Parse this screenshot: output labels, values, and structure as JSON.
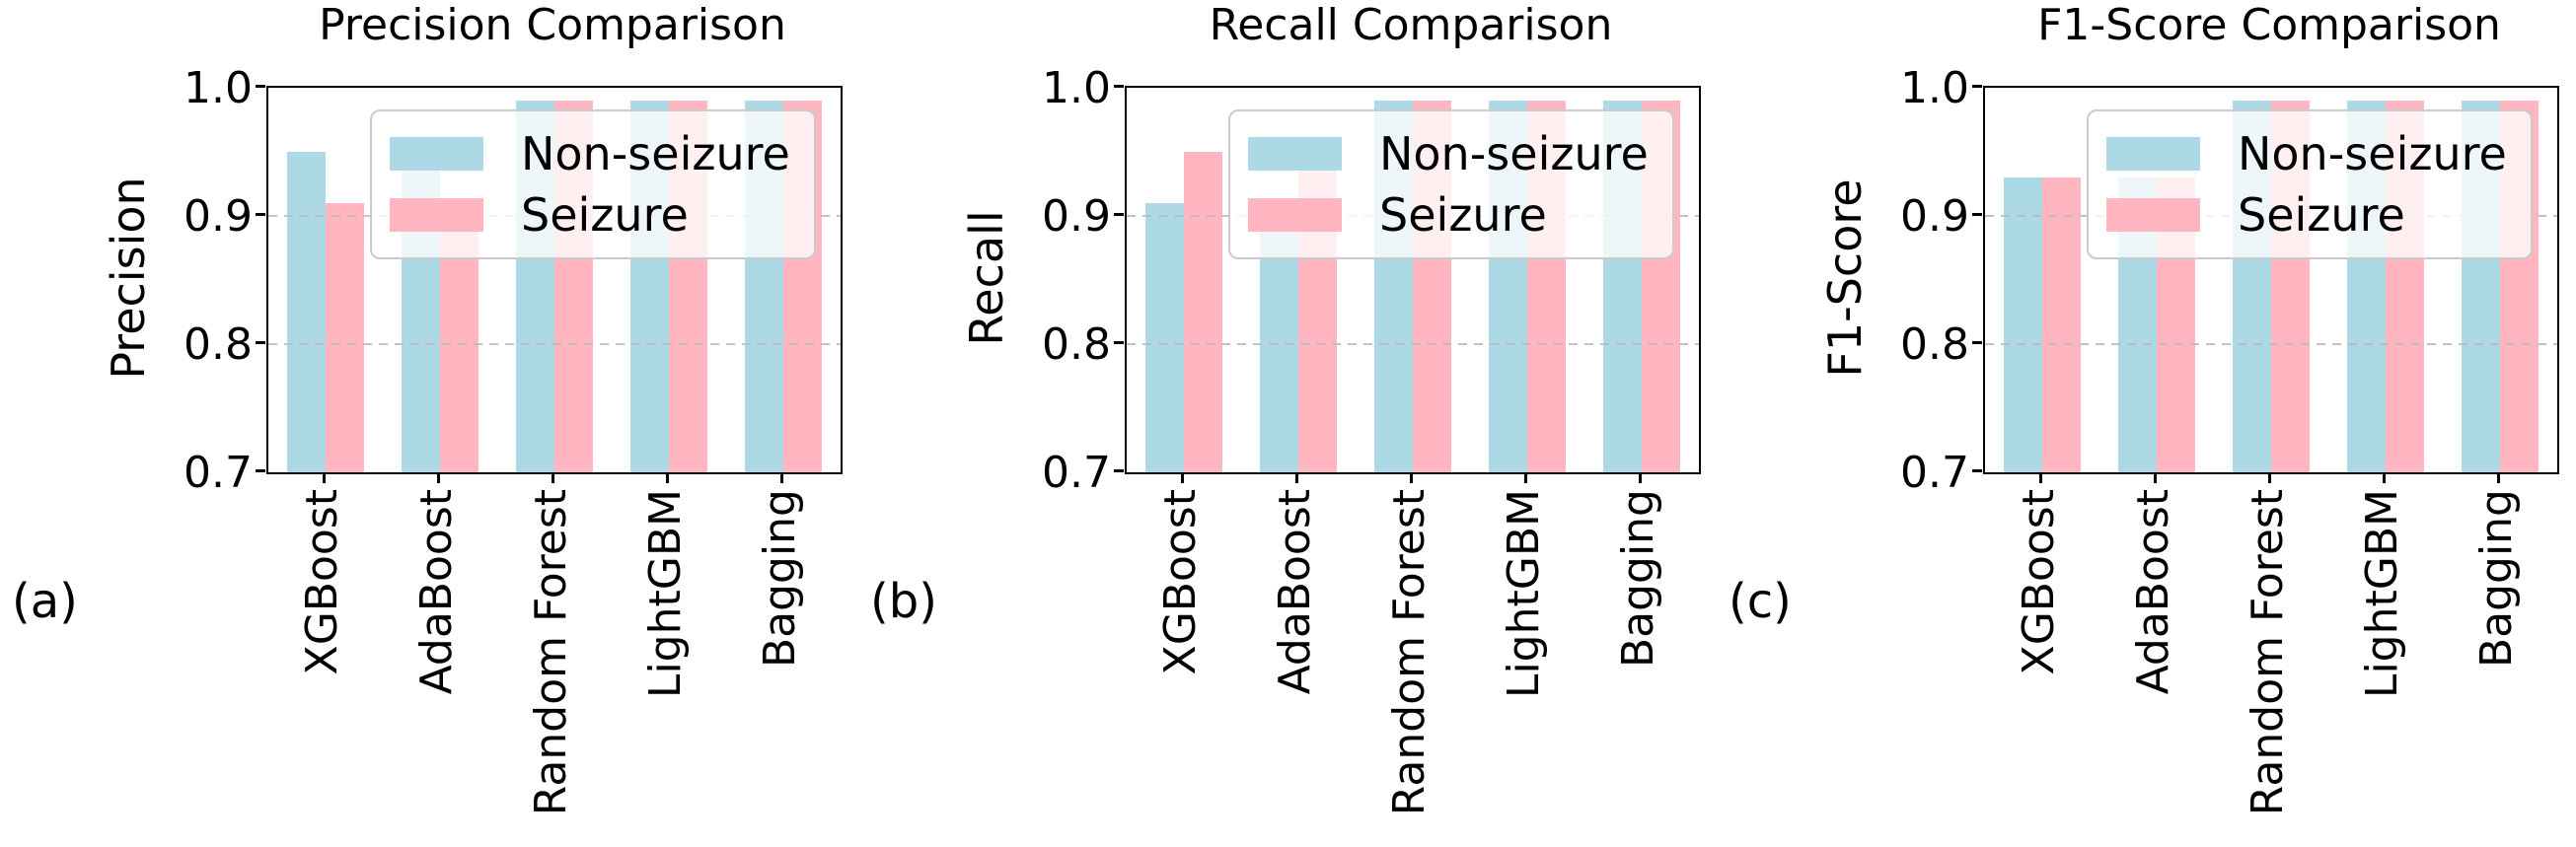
{
  "figure_caption_labels": [
    "(a)",
    "(b)",
    "(c)"
  ],
  "legend": {
    "items": [
      {
        "label": "Non-seizure",
        "color": "#ADD8E6"
      },
      {
        "label": "Seizure",
        "color": "#FFB6C1"
      }
    ],
    "position": "upper right inside plot",
    "background": "rgba(255,255,255,0.78)"
  },
  "chart_data": [
    {
      "type": "bar",
      "panel_label": "(a)",
      "title": "Precision Comparison",
      "ylabel": "Precision",
      "xlabel": "",
      "categories": [
        "XGBoost",
        "AdaBoost",
        "Random Forest",
        "LightGBM",
        "Bagging"
      ],
      "series": [
        {
          "name": "Non-seizure",
          "color": "#ADD8E6",
          "values": [
            0.95,
            0.95,
            0.99,
            0.99,
            0.99
          ]
        },
        {
          "name": "Seizure",
          "color": "#FFB6C1",
          "values": [
            0.91,
            0.91,
            0.99,
            0.99,
            0.99
          ]
        }
      ],
      "ylim": [
        0.7,
        1.0
      ],
      "yticks": [
        1.0,
        0.9,
        0.8,
        0.7
      ],
      "grid": "horizontal dashed at 0.8 and 0.9",
      "xtick_rotation": 90,
      "legend_position": "upper right"
    },
    {
      "type": "bar",
      "panel_label": "(b)",
      "title": "Recall Comparison",
      "ylabel": "Recall",
      "xlabel": "",
      "categories": [
        "XGBoost",
        "AdaBoost",
        "Random Forest",
        "LightGBM",
        "Bagging"
      ],
      "series": [
        {
          "name": "Non-seizure",
          "color": "#ADD8E6",
          "values": [
            0.91,
            0.91,
            0.99,
            0.99,
            0.99
          ]
        },
        {
          "name": "Seizure",
          "color": "#FFB6C1",
          "values": [
            0.95,
            0.95,
            0.99,
            0.99,
            0.99
          ]
        }
      ],
      "ylim": [
        0.7,
        1.0
      ],
      "yticks": [
        1.0,
        0.9,
        0.8,
        0.7
      ],
      "grid": "horizontal dashed at 0.8 and 0.9",
      "xtick_rotation": 90,
      "legend_position": "upper right"
    },
    {
      "type": "bar",
      "panel_label": "(c)",
      "title": "F1-Score Comparison",
      "ylabel": "F1-Score",
      "xlabel": "",
      "categories": [
        "XGBoost",
        "AdaBoost",
        "Random Forest",
        "LightGBM",
        "Bagging"
      ],
      "series": [
        {
          "name": "Non-seizure",
          "color": "#ADD8E6",
          "values": [
            0.93,
            0.93,
            0.99,
            0.99,
            0.99
          ]
        },
        {
          "name": "Seizure",
          "color": "#FFB6C1",
          "values": [
            0.93,
            0.93,
            0.99,
            0.99,
            0.99
          ]
        }
      ],
      "ylim": [
        0.7,
        1.0
      ],
      "yticks": [
        1.0,
        0.9,
        0.8,
        0.7
      ],
      "grid": "horizontal dashed at 0.8 and 0.9",
      "xtick_rotation": 90,
      "legend_position": "upper right"
    }
  ]
}
